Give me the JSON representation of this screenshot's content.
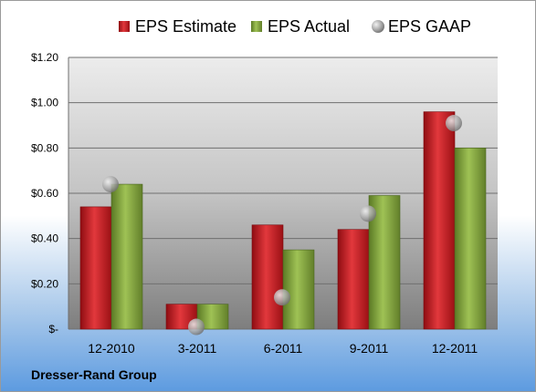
{
  "company": "Dresser-Rand Group",
  "chart_data": {
    "type": "bar",
    "categories": [
      "12-2010",
      "3-2011",
      "6-2011",
      "9-2011",
      "12-2011"
    ],
    "series": [
      {
        "name": "EPS Estimate",
        "type": "bar",
        "color": "#c0161c",
        "values": [
          0.54,
          0.11,
          0.46,
          0.44,
          0.96
        ]
      },
      {
        "name": "EPS Actual",
        "type": "bar",
        "color": "#7ea03c",
        "values": [
          0.64,
          0.11,
          0.35,
          0.59,
          0.8
        ]
      },
      {
        "name": "EPS GAAP",
        "type": "scatter",
        "color": "#a8a8a8",
        "values": [
          0.64,
          0.01,
          0.14,
          0.51,
          0.91
        ]
      }
    ],
    "y_ticks": [
      {
        "value": 0,
        "label": "$-"
      },
      {
        "value": 0.2,
        "label": "$0.20"
      },
      {
        "value": 0.4,
        "label": "$0.40"
      },
      {
        "value": 0.6,
        "label": "$0.60"
      },
      {
        "value": 0.8,
        "label": "$0.80"
      },
      {
        "value": 1.0,
        "label": "$1.00"
      },
      {
        "value": 1.2,
        "label": "$1.20"
      }
    ],
    "ylim": [
      0,
      1.2
    ],
    "grid": true,
    "legend": "top"
  }
}
